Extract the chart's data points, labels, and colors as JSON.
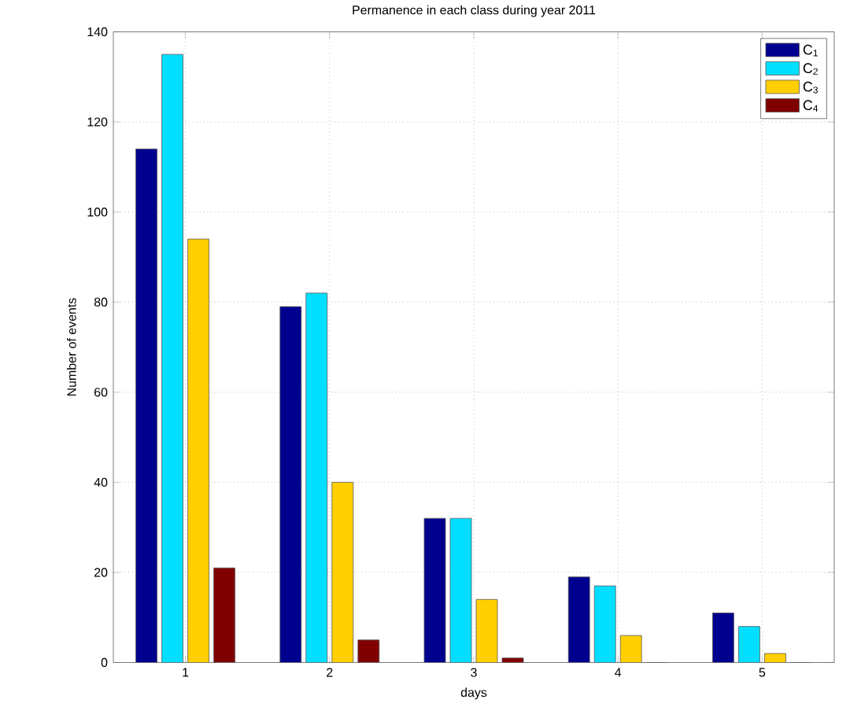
{
  "chart_data": {
    "type": "bar",
    "title": "Permanence in each class during year 2011",
    "xlabel": "days",
    "ylabel": "Number of events",
    "categories": [
      "1",
      "2",
      "3",
      "4",
      "5"
    ],
    "series": [
      {
        "name": "C$_{1}$",
        "color": "#00008f",
        "values": [
          114,
          79,
          32,
          19,
          11
        ]
      },
      {
        "name": "C$_{2}$",
        "color": "#00dfff",
        "values": [
          135,
          82,
          32,
          17,
          8
        ]
      },
      {
        "name": "C$_{3}$",
        "color": "#ffcf00",
        "values": [
          94,
          40,
          14,
          6,
          2
        ]
      },
      {
        "name": "C$_{4}$",
        "color": "#800000",
        "values": [
          21,
          5,
          1,
          0,
          0
        ]
      }
    ],
    "ylim": [
      0,
      140
    ],
    "yticks": [
      0,
      20,
      40,
      60,
      80,
      100,
      120,
      140
    ],
    "grid": true,
    "legend": "top right"
  }
}
